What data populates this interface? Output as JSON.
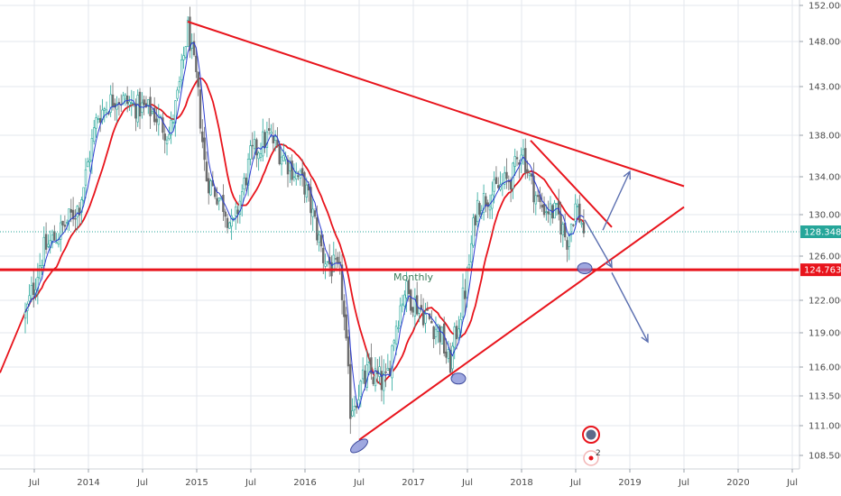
{
  "chart_data": {
    "type": "candlestick",
    "title": "",
    "xlabel": "",
    "ylabel": "",
    "ylim": [
      107.5,
      152.5
    ],
    "y_ticks": [
      108.5,
      111.0,
      113.5,
      116.0,
      119.0,
      122.0,
      126.0,
      130.0,
      134.0,
      138.0,
      143.0,
      148.0,
      152.0
    ],
    "x_ticks": [
      {
        "label": "Jul",
        "date": "2013-07"
      },
      {
        "label": "2014",
        "date": "2014-01"
      },
      {
        "label": "Jul",
        "date": "2014-07"
      },
      {
        "label": "2015",
        "date": "2015-01"
      },
      {
        "label": "Jul",
        "date": "2015-07"
      },
      {
        "label": "2016",
        "date": "2016-01"
      },
      {
        "label": "Jul",
        "date": "2016-07"
      },
      {
        "label": "2017",
        "date": "2017-01"
      },
      {
        "label": "Jul",
        "date": "2017-07"
      },
      {
        "label": "2018",
        "date": "2018-01"
      },
      {
        "label": "Jul",
        "date": "2018-07"
      },
      {
        "label": "2019",
        "date": "2019-01"
      },
      {
        "label": "Jul",
        "date": "2019-07"
      },
      {
        "label": "2020",
        "date": "2020-01"
      },
      {
        "label": "Jul",
        "date": "2020-07"
      }
    ],
    "grid": true,
    "colors": {
      "up": "#26a69a",
      "down": "#6b6b6b",
      "ma_fast": "#2b3bd1",
      "ma_slow": "#e8141c",
      "trend": "#e8141c",
      "arrow": "#5b6fb0"
    },
    "price_path": [
      {
        "date": "2013-06",
        "price": 120.5
      },
      {
        "date": "2013-08",
        "price": 126.5
      },
      {
        "date": "2013-10",
        "price": 128.5
      },
      {
        "date": "2013-12",
        "price": 131.0
      },
      {
        "date": "2014-02",
        "price": 140.0
      },
      {
        "date": "2014-04",
        "price": 142.0
      },
      {
        "date": "2014-06",
        "price": 141.0
      },
      {
        "date": "2014-08",
        "price": 140.5
      },
      {
        "date": "2014-10",
        "price": 138.0
      },
      {
        "date": "2014-11",
        "price": 142.5
      },
      {
        "date": "2014-12",
        "price": 149.5
      },
      {
        "date": "2015-01",
        "price": 143.5
      },
      {
        "date": "2015-02",
        "price": 134.0
      },
      {
        "date": "2015-04",
        "price": 131.0
      },
      {
        "date": "2015-05",
        "price": 128.5
      },
      {
        "date": "2015-07",
        "price": 136.0
      },
      {
        "date": "2015-09",
        "price": 138.0
      },
      {
        "date": "2015-11",
        "price": 135.5
      },
      {
        "date": "2016-01",
        "price": 133.0
      },
      {
        "date": "2016-03",
        "price": 126.0
      },
      {
        "date": "2016-05",
        "price": 124.0
      },
      {
        "date": "2016-06",
        "price": 112.5
      },
      {
        "date": "2016-08",
        "price": 115.5
      },
      {
        "date": "2016-10",
        "price": 114.5
      },
      {
        "date": "2016-11",
        "price": 119.5
      },
      {
        "date": "2016-12",
        "price": 123.0
      },
      {
        "date": "2017-02",
        "price": 121.0
      },
      {
        "date": "2017-04",
        "price": 119.0
      },
      {
        "date": "2017-05",
        "price": 116.0
      },
      {
        "date": "2017-07",
        "price": 124.0
      },
      {
        "date": "2017-08",
        "price": 131.0
      },
      {
        "date": "2017-10",
        "price": 132.5
      },
      {
        "date": "2017-12",
        "price": 134.0
      },
      {
        "date": "2018-01",
        "price": 137.0
      },
      {
        "date": "2018-02",
        "price": 133.5
      },
      {
        "date": "2018-03",
        "price": 131.0
      },
      {
        "date": "2018-05",
        "price": 130.0
      },
      {
        "date": "2018-06",
        "price": 127.5
      },
      {
        "date": "2018-07",
        "price": 131.0
      },
      {
        "date": "2018-08",
        "price": 128.3
      }
    ],
    "trendlines": [
      {
        "from": {
          "date": "2014-12",
          "price": 150.2
        },
        "to": {
          "date": "2019-07",
          "price": 133.0
        }
      },
      {
        "from": {
          "date": "2018-02",
          "price": 137.5
        },
        "to": {
          "date": "2018-11",
          "price": 128.8
        }
      },
      {
        "from": {
          "date": "2016-07",
          "price": 109.8
        },
        "to": {
          "date": "2019-07",
          "price": 130.8
        }
      }
    ],
    "horizontal_line": {
      "price": 124.763
    },
    "current_price": {
      "price": 128.348
    },
    "price_labels": [
      {
        "text": "128.348",
        "price": 128.348,
        "color": "#26a69a"
      },
      {
        "text": "124.763",
        "price": 124.763,
        "color": "#e8141c"
      }
    ],
    "annotation": {
      "text": "Monthly",
      "date": "2017-01",
      "price": 123.8
    },
    "arrows": [
      {
        "from": {
          "date": "2018-10",
          "price": 128.5
        },
        "to": {
          "date": "2019-01",
          "price": 134.5
        }
      },
      {
        "from": {
          "date": "2018-08",
          "price": 129.5
        },
        "to": {
          "date": "2018-11",
          "price": 125.0
        }
      },
      {
        "from": {
          "date": "2018-11",
          "price": 124.5
        },
        "to": {
          "date": "2019-03",
          "price": 118.2
        }
      }
    ],
    "markers": [
      {
        "date": "2016-07",
        "price": 109.3
      },
      {
        "date": "2017-06",
        "price": 115.0
      },
      {
        "date": "2018-08",
        "price": 124.9
      }
    ],
    "indicator_badge": {
      "count": "2"
    }
  }
}
